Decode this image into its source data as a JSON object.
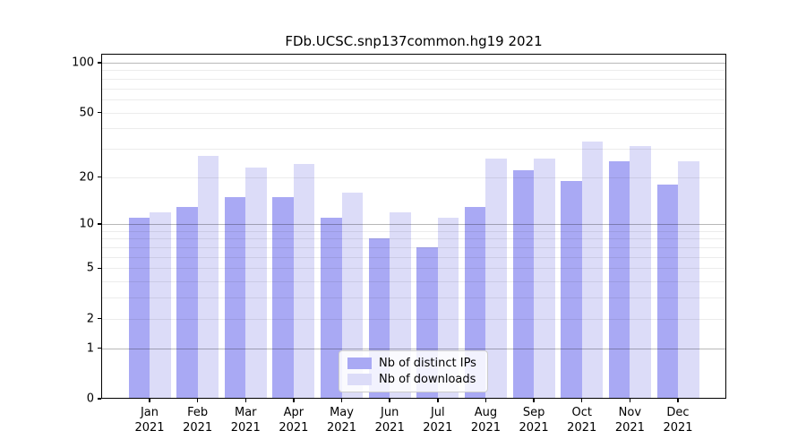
{
  "title": "FDb.UCSC.snp137common.hg19 2021",
  "chart_data": {
    "type": "bar",
    "title": "FDb.UCSC.snp137common.hg19 2021",
    "categories": [
      "Jan 2021",
      "Feb 2021",
      "Mar 2021",
      "Apr 2021",
      "May 2021",
      "Jun 2021",
      "Jul 2021",
      "Aug 2021",
      "Sep 2021",
      "Oct 2021",
      "Nov 2021",
      "Dec 2021"
    ],
    "series": [
      {
        "name": "Nb of distinct IPs",
        "color": "#a9a9f4",
        "values": [
          11,
          13,
          15,
          15,
          11,
          8,
          7,
          13,
          22,
          19,
          25,
          18
        ]
      },
      {
        "name": "Nb of downloads",
        "color": "#dcdcf8",
        "values": [
          12,
          27,
          23,
          24,
          16,
          12,
          11,
          26,
          26,
          33,
          31,
          25
        ]
      }
    ],
    "xlabel": "",
    "ylabel": "",
    "yscale": "log1p",
    "ylim": [
      0,
      113
    ],
    "yticks": [
      100,
      50,
      20,
      10,
      5,
      2,
      1,
      0
    ],
    "major_gridlines": [
      1,
      10,
      100
    ],
    "minor_gridlines": [
      2,
      3,
      4,
      5,
      6,
      7,
      8,
      9,
      20,
      30,
      40,
      50,
      60,
      70,
      80,
      90
    ],
    "grid": true,
    "legend_position": "bottom-center",
    "colors": {
      "axis": "#000000",
      "major_grid": "#b3b3b3",
      "minor_grid": "#ececec",
      "background": "#ffffff"
    }
  }
}
